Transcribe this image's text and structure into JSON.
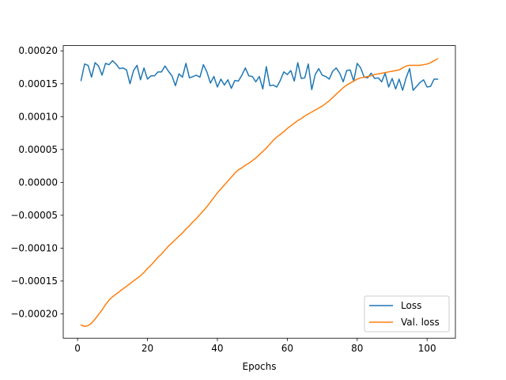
{
  "chart_data": {
    "type": "line",
    "title": "",
    "xlabel": "Epochs",
    "ylabel": "",
    "xlim": [
      -4.1,
      108.1
    ],
    "ylim": [
      -0.000237,
      0.000208
    ],
    "xticks": [
      0,
      20,
      40,
      60,
      80,
      100
    ],
    "xtick_labels": [
      "0",
      "20",
      "40",
      "60",
      "80",
      "100"
    ],
    "yticks": [
      -0.0002,
      -0.00015,
      -0.0001,
      -5e-05,
      0.0,
      5e-05,
      0.0001,
      0.00015,
      0.0002
    ],
    "ytick_labels": [
      "−0.00020",
      "−0.00015",
      "−0.00010",
      "−0.00005",
      "0.00000",
      "0.00005",
      "0.00010",
      "0.00015",
      "0.00020"
    ],
    "grid": false,
    "legend_position": "lower-right",
    "x_range": [
      1,
      103
    ],
    "series": [
      {
        "name": "Loss",
        "color": "#1f77b4",
        "values": [
          0.000155,
          0.00018,
          0.000178,
          0.00016,
          0.000182,
          0.000177,
          0.000163,
          0.000181,
          0.000179,
          0.000185,
          0.00018,
          0.000173,
          0.000174,
          0.000171,
          0.00015,
          0.00017,
          0.000178,
          0.000156,
          0.000174,
          0.000157,
          0.000162,
          0.000162,
          0.000168,
          0.000168,
          0.000177,
          0.000169,
          0.000162,
          0.000147,
          0.000165,
          0.00016,
          0.000181,
          0.000159,
          0.000161,
          0.000163,
          0.00016,
          0.000179,
          0.000168,
          0.000151,
          0.000161,
          0.000145,
          0.000157,
          0.000148,
          0.000156,
          0.000143,
          0.000155,
          0.000154,
          0.000163,
          0.000174,
          0.000162,
          0.000161,
          0.000153,
          0.000161,
          0.000142,
          0.000176,
          0.000147,
          0.000148,
          0.000145,
          0.000155,
          0.000168,
          0.000164,
          0.00017,
          0.000154,
          0.000182,
          0.000158,
          0.000159,
          0.00018,
          0.000141,
          0.000164,
          0.000173,
          0.000163,
          0.000161,
          0.000157,
          0.000169,
          0.000174,
          0.000166,
          0.000153,
          0.00017,
          0.000171,
          0.000154,
          0.000181,
          0.000174,
          0.00016,
          0.000159,
          0.000166,
          0.000158,
          0.000159,
          0.000153,
          0.000166,
          0.000145,
          0.000158,
          0.000142,
          0.000157,
          0.00014,
          0.000159,
          0.000173,
          0.00014,
          0.000146,
          0.000152,
          0.000156,
          0.000145,
          0.000146,
          0.000157,
          0.000157
        ]
      },
      {
        "name": "Val. loss",
        "color": "#ff7f0e",
        "values": [
          -0.000217,
          -0.000219,
          -0.000218,
          -0.000214,
          -0.000208,
          -0.000201,
          -0.000194,
          -0.000186,
          -0.000179,
          -0.000174,
          -0.00017,
          -0.000166,
          -0.000162,
          -0.000158,
          -0.000154,
          -0.00015,
          -0.000146,
          -0.000142,
          -0.000137,
          -0.000131,
          -0.000126,
          -0.00012,
          -0.000114,
          -0.000109,
          -0.000103,
          -9.7e-05,
          -9.2e-05,
          -8.7e-05,
          -8.2e-05,
          -7.7e-05,
          -7.1e-05,
          -6.6e-05,
          -6e-05,
          -5.5e-05,
          -4.9e-05,
          -4.3e-05,
          -3.7e-05,
          -3e-05,
          -2.3e-05,
          -1.6e-05,
          -1e-05,
          -4e-06,
          2e-06,
          8e-06,
          1.4e-05,
          1.9e-05,
          2.2e-05,
          2.6e-05,
          2.9e-05,
          3.3e-05,
          3.7e-05,
          4.2e-05,
          4.7e-05,
          5.2e-05,
          5.8e-05,
          6.4e-05,
          6.9e-05,
          7.3e-05,
          7.7e-05,
          8.2e-05,
          8.6e-05,
          9e-05,
          9.4e-05,
          9.7e-05,
          0.000101,
          0.000104,
          0.000107,
          0.00011,
          0.000113,
          0.000116,
          0.00012,
          0.000124,
          0.000129,
          0.000134,
          0.000139,
          0.000144,
          0.000148,
          0.000151,
          0.000154,
          0.000157,
          0.000159,
          0.00016,
          0.000161,
          0.000162,
          0.000164,
          0.000165,
          0.000166,
          0.000167,
          0.000168,
          0.000169,
          0.00017,
          0.000171,
          0.000174,
          0.000177,
          0.000178,
          0.000178,
          0.000178,
          0.000178,
          0.000179,
          0.00018,
          0.000182,
          0.000185,
          0.000188
        ]
      }
    ]
  }
}
